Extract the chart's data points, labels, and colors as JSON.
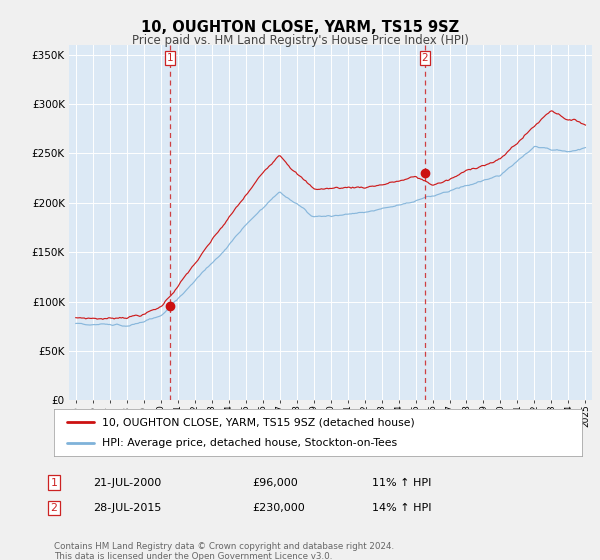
{
  "title": "10, OUGHTON CLOSE, YARM, TS15 9SZ",
  "subtitle": "Price paid vs. HM Land Registry's House Price Index (HPI)",
  "ylabel_ticks": [
    "£0",
    "£50K",
    "£100K",
    "£150K",
    "£200K",
    "£250K",
    "£300K",
    "£350K"
  ],
  "ytick_values": [
    0,
    50000,
    100000,
    150000,
    200000,
    250000,
    300000,
    350000
  ],
  "ylim": [
    0,
    360000
  ],
  "xlim_start": 1994.6,
  "xlim_end": 2025.4,
  "sale1_year": 2000.54,
  "sale1_price": 96000,
  "sale2_year": 2015.54,
  "sale2_price": 230000,
  "hpi_line_color": "#7fb2d9",
  "price_line_color": "#cc1111",
  "vline_color": "#cc2222",
  "plot_bg_color": "#dce9f5",
  "background_color": "#f0f0f0",
  "legend_line1": "10, OUGHTON CLOSE, YARM, TS15 9SZ (detached house)",
  "legend_line2": "HPI: Average price, detached house, Stockton-on-Tees",
  "footer": "Contains HM Land Registry data © Crown copyright and database right 2024.\nThis data is licensed under the Open Government Licence v3.0.",
  "table_row1": [
    "1",
    "21-JUL-2000",
    "£96,000",
    "11% ↑ HPI"
  ],
  "table_row2": [
    "2",
    "28-JUL-2015",
    "£230,000",
    "14% ↑ HPI"
  ]
}
